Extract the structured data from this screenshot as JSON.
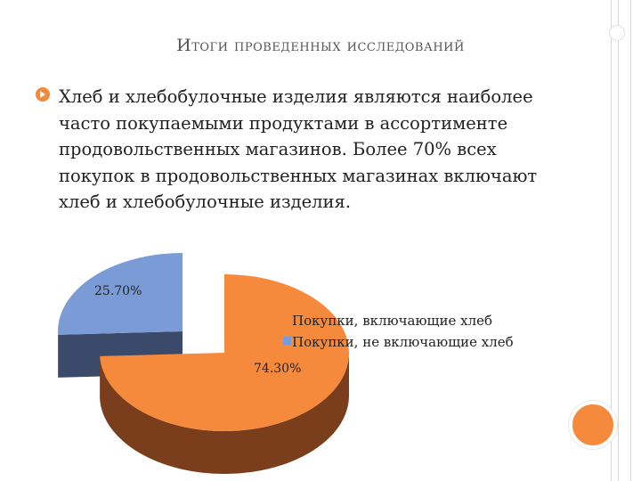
{
  "slide": {
    "title": "Итоги проведенных исследований",
    "bullet": "Хлеб и хлебобулочные изделия являются наиболее часто покупаемыми продуктами в ассортименте продовольственных магазинов. Более 70% всех покупок в продовольственных магазинах включают хлеб и хлебобулочные изделия."
  },
  "colors": {
    "accent": "#f08a3c",
    "slice_bread": "#f58a3c",
    "slice_bread_side": "#7a3e1c",
    "slice_no_bread": "#7b9bd6",
    "slice_no_bread_side": "#3b4a6b"
  },
  "chart_data": {
    "type": "pie",
    "style": "3d-exploded",
    "labels": [
      "Покупки, включающие хлеб",
      "Покупки, не включающие хлеб"
    ],
    "values": [
      74.3,
      25.7
    ],
    "data_labels": [
      "74.30%",
      "25.70%"
    ],
    "legend": "right"
  }
}
